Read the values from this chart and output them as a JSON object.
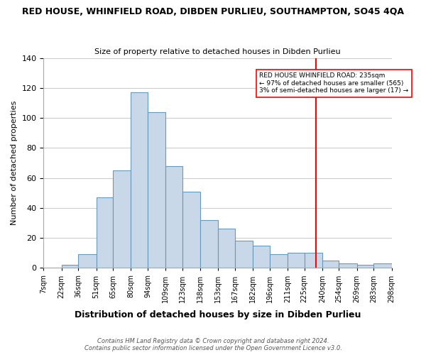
{
  "title": "RED HOUSE, WHINFIELD ROAD, DIBDEN PURLIEU, SOUTHAMPTON, SO45 4QA",
  "subtitle": "Size of property relative to detached houses in Dibden Purlieu",
  "xlabel": "Distribution of detached houses by size in Dibden Purlieu",
  "ylabel": "Number of detached properties",
  "bar_edges": [
    7,
    22,
    36,
    51,
    65,
    80,
    94,
    109,
    123,
    138,
    153,
    167,
    182,
    196,
    211,
    225,
    240,
    254,
    269,
    283,
    298
  ],
  "bar_heights": [
    0,
    2,
    9,
    47,
    65,
    117,
    104,
    68,
    51,
    32,
    26,
    18,
    15,
    9,
    10,
    10,
    5,
    3,
    2,
    3
  ],
  "bar_color": "#c8d8e8",
  "bar_edgecolor": "#6699bb",
  "grid_color": "#cccccc",
  "vline_x": 235,
  "vline_color": "red",
  "annotation_box_text": "RED HOUSE WHINFIELD ROAD: 235sqm\n← 97% of detached houses are smaller (565)\n3% of semi-detached houses are larger (17) →",
  "annotation_box_facecolor": "white",
  "annotation_box_edgecolor": "red",
  "ylim": [
    0,
    140
  ],
  "yticks": [
    0,
    20,
    40,
    60,
    80,
    100,
    120,
    140
  ],
  "tick_labels": [
    "7sqm",
    "22sqm",
    "36sqm",
    "51sqm",
    "65sqm",
    "80sqm",
    "94sqm",
    "109sqm",
    "123sqm",
    "138sqm",
    "153sqm",
    "167sqm",
    "182sqm",
    "196sqm",
    "211sqm",
    "225sqm",
    "240sqm",
    "254sqm",
    "269sqm",
    "283sqm",
    "298sqm"
  ],
  "footer_line1": "Contains HM Land Registry data © Crown copyright and database right 2024.",
  "footer_line2": "Contains public sector information licensed under the Open Government Licence v3.0.",
  "bg_color": "white"
}
